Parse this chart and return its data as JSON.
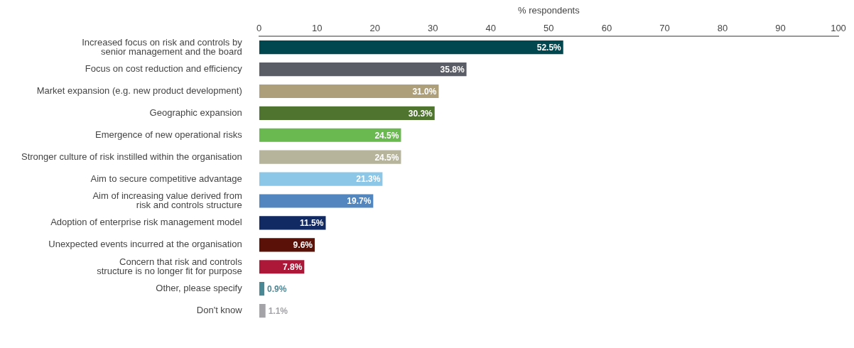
{
  "chart_data": {
    "type": "bar",
    "orientation": "horizontal",
    "xlabel": "% respondents",
    "categories": [
      "Increased focus on risk and controls by\nsenior management and the board",
      "Focus on cost reduction and efficiency",
      "Market expansion (e.g. new product development)",
      "Geographic expansion",
      "Emergence of new operational risks",
      "Stronger culture of risk instilled within the organisation",
      "Aim to secure competitive advantage",
      "Aim of increasing value derived from\nrisk and controls structure",
      "Adoption of enterprise risk management model",
      "Unexpected events incurred at the organisation",
      "Concern that risk and controls\nstructure is no longer fit for purpose",
      "Other, please specify",
      "Don't know"
    ],
    "values": [
      52.5,
      35.8,
      31.0,
      30.3,
      24.5,
      24.5,
      21.3,
      19.7,
      11.5,
      9.6,
      7.8,
      0.9,
      1.1
    ],
    "value_labels": [
      "52.5%",
      "35.8%",
      "31.0%",
      "30.3%",
      "24.5%",
      "24.5%",
      "21.3%",
      "19.7%",
      "11.5%",
      "9.6%",
      "7.8%",
      "0.9%",
      "1.1%"
    ],
    "colors": [
      "#00474f",
      "#5b5d66",
      "#ad9f7a",
      "#4f7430",
      "#6ab950",
      "#b6b59c",
      "#8cc7e8",
      "#5186bf",
      "#122a63",
      "#5a1208",
      "#ad1838",
      "#4b8896",
      "#a3a3a8"
    ],
    "xlim": [
      0,
      100
    ],
    "xticks": [
      0,
      10,
      20,
      30,
      40,
      50,
      60,
      70,
      80,
      90,
      100
    ],
    "grid": false,
    "legend": false
  }
}
